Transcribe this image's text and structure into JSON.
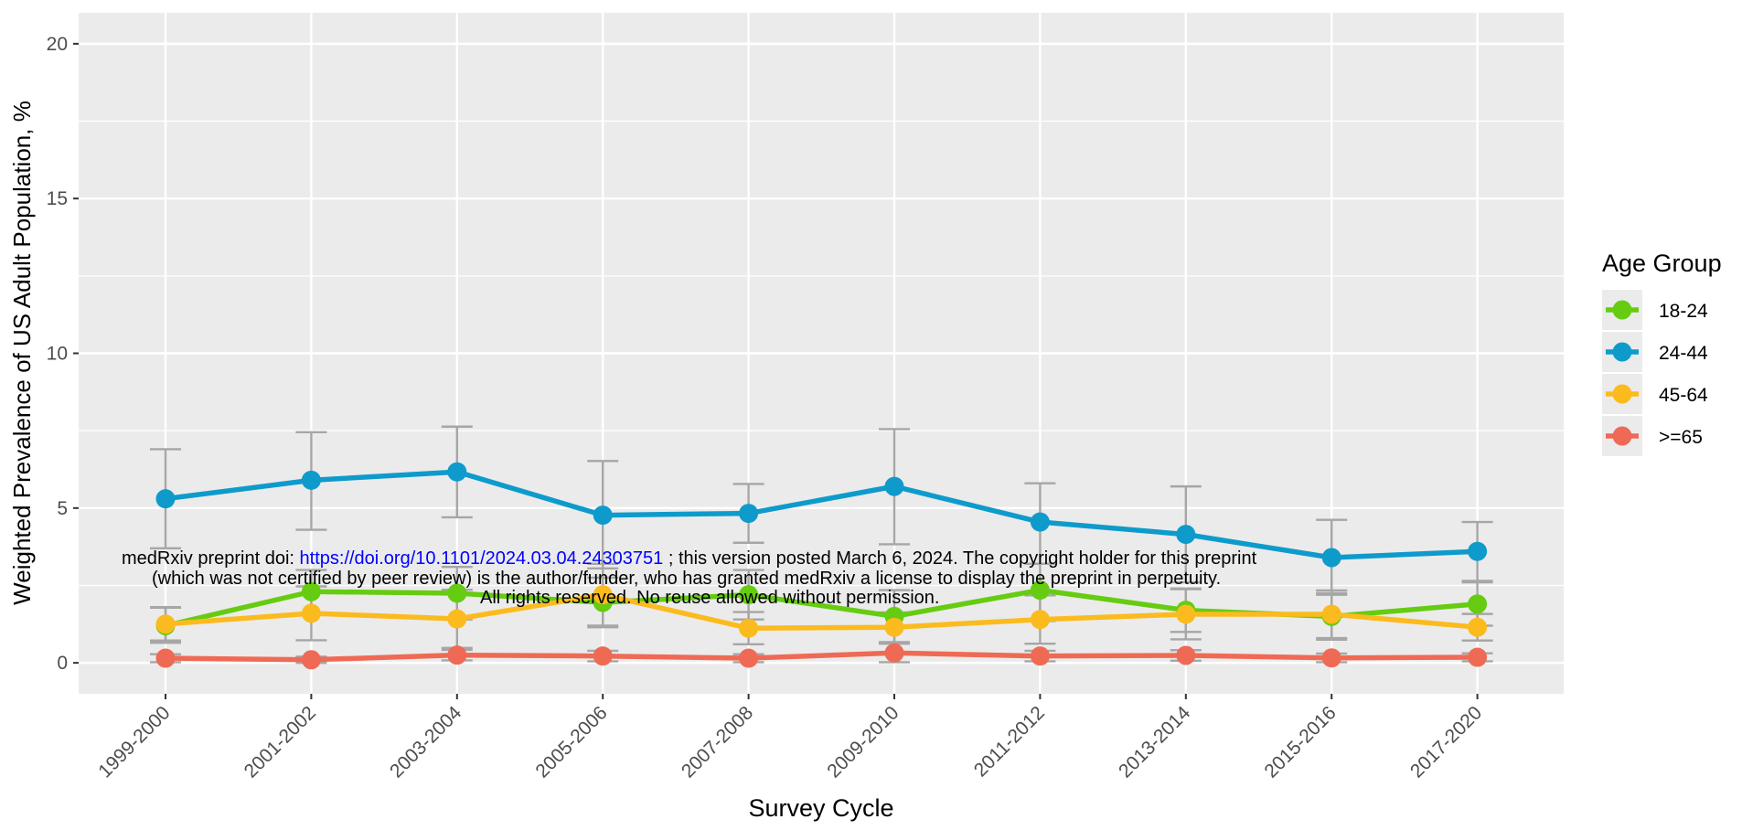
{
  "chart_data": {
    "type": "line",
    "xlabel": "Survey Cycle",
    "ylabel": "Weighted Prevalence of US Adult Population, %",
    "categories": [
      "1999-2000",
      "2001-2002",
      "2003-2004",
      "2005-2006",
      "2007-2008",
      "2009-2010",
      "2011-2012",
      "2013-2014",
      "2015-2016",
      "2017-2020"
    ],
    "ylim": [
      -1,
      21
    ],
    "yticks": [
      0,
      5,
      10,
      15,
      20
    ],
    "ytick_labels": [
      "0",
      "5",
      "10",
      "15",
      "20"
    ],
    "grid": true,
    "legend": {
      "title": "Age Group",
      "placement": "right"
    },
    "series": [
      {
        "name": "18-24",
        "color": "#66cc11",
        "values": [
          1.2,
          2.3,
          2.25,
          1.95,
          2.2,
          1.5,
          2.35,
          1.7,
          1.5,
          1.9
        ],
        "error_low": [
          0.65,
          1.6,
          1.4,
          1.15,
          1.4,
          0.65,
          1.35,
          1.0,
          0.75,
          1.2
        ],
        "error_high": [
          1.8,
          3.0,
          3.1,
          2.75,
          3.0,
          2.35,
          3.2,
          2.4,
          2.25,
          2.6
        ]
      },
      {
        "name": "24-44",
        "color": "#0e9bcc",
        "values": [
          5.3,
          5.9,
          6.17,
          4.77,
          4.83,
          5.7,
          4.55,
          4.15,
          3.4,
          3.6
        ],
        "error_low": [
          3.7,
          4.3,
          4.7,
          3.05,
          3.88,
          3.83,
          3.2,
          2.6,
          2.2,
          2.65
        ],
        "error_high": [
          6.9,
          7.45,
          7.63,
          6.52,
          5.78,
          7.55,
          5.8,
          5.7,
          4.62,
          4.55
        ]
      },
      {
        "name": "45-64",
        "color": "#fbbb1e",
        "values": [
          1.25,
          1.6,
          1.42,
          2.2,
          1.12,
          1.15,
          1.4,
          1.57,
          1.57,
          1.15
        ],
        "error_low": [
          0.72,
          0.73,
          0.48,
          1.2,
          0.6,
          0.67,
          0.62,
          0.76,
          0.8,
          0.72
        ],
        "error_high": [
          1.78,
          2.47,
          2.36,
          3.2,
          1.64,
          1.63,
          2.18,
          2.38,
          2.34,
          1.58
        ]
      },
      {
        "name": ">=65",
        "color": "#ef6a55",
        "values": [
          0.15,
          0.1,
          0.25,
          0.22,
          0.15,
          0.32,
          0.22,
          0.24,
          0.16,
          0.18
        ],
        "error_low": [
          0.02,
          0.0,
          0.08,
          0.05,
          0.02,
          0.02,
          0.05,
          0.07,
          0.02,
          0.05
        ],
        "error_high": [
          0.28,
          0.2,
          0.42,
          0.39,
          0.28,
          0.62,
          0.39,
          0.41,
          0.3,
          0.31
        ]
      }
    ]
  },
  "watermark": {
    "line1_prefix": "medRxiv preprint doi: ",
    "line1_link": "https://doi.org/10.1101/2024.03.04.24303751",
    "line1_suffix": "; this version posted March 6, 2024. The copyright holder for this preprint",
    "line2": "(which was not certified by peer review) is the author/funder, who has granted medRxiv a license to display the preprint in perpetuity.",
    "line3": "All rights reserved. No reuse allowed without permission."
  }
}
